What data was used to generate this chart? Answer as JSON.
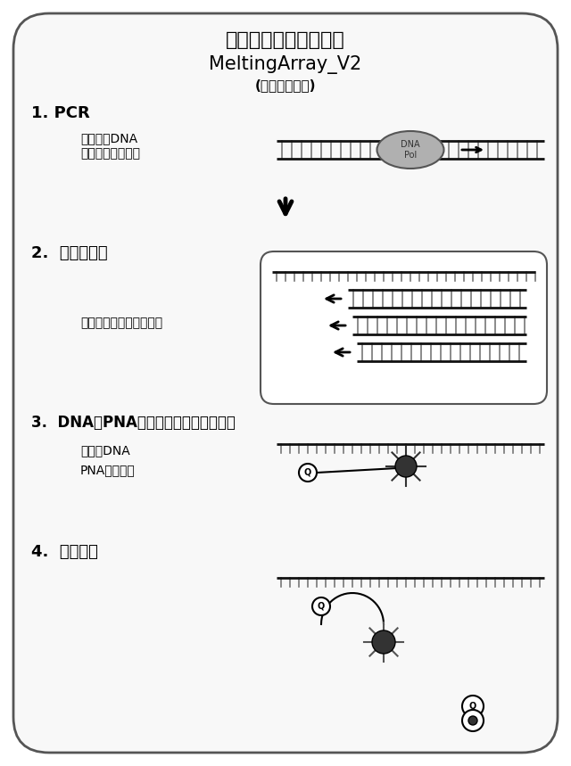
{
  "title_line1": "一本鎖生成段階を伴う",
  "title_line2": "MeltingArray_V2",
  "title_line3": "(新規開発技術)",
  "section1_label": "1. PCR",
  "section1_text1": "サンプルDNA",
  "section1_text2": "通常のプライマー",
  "section2_label": "2.  一本鎖生成",
  "section2_text": "過剰な逆方向プライマー",
  "section3_label": "3.  DNA－PNAハイブリダイゼーション",
  "section3_text1": "一本鎖DNA",
  "section3_text2": "PNAプローブ",
  "section4_label": "4.  融解分析",
  "bg_color": "#f5f5f5",
  "border_color": "#333333",
  "dna_color": "#111111",
  "rung_color": "#555555",
  "enzyme_color": "#aaaaaa",
  "box_color": "#e8e8e8",
  "arrow_color": "#111111"
}
